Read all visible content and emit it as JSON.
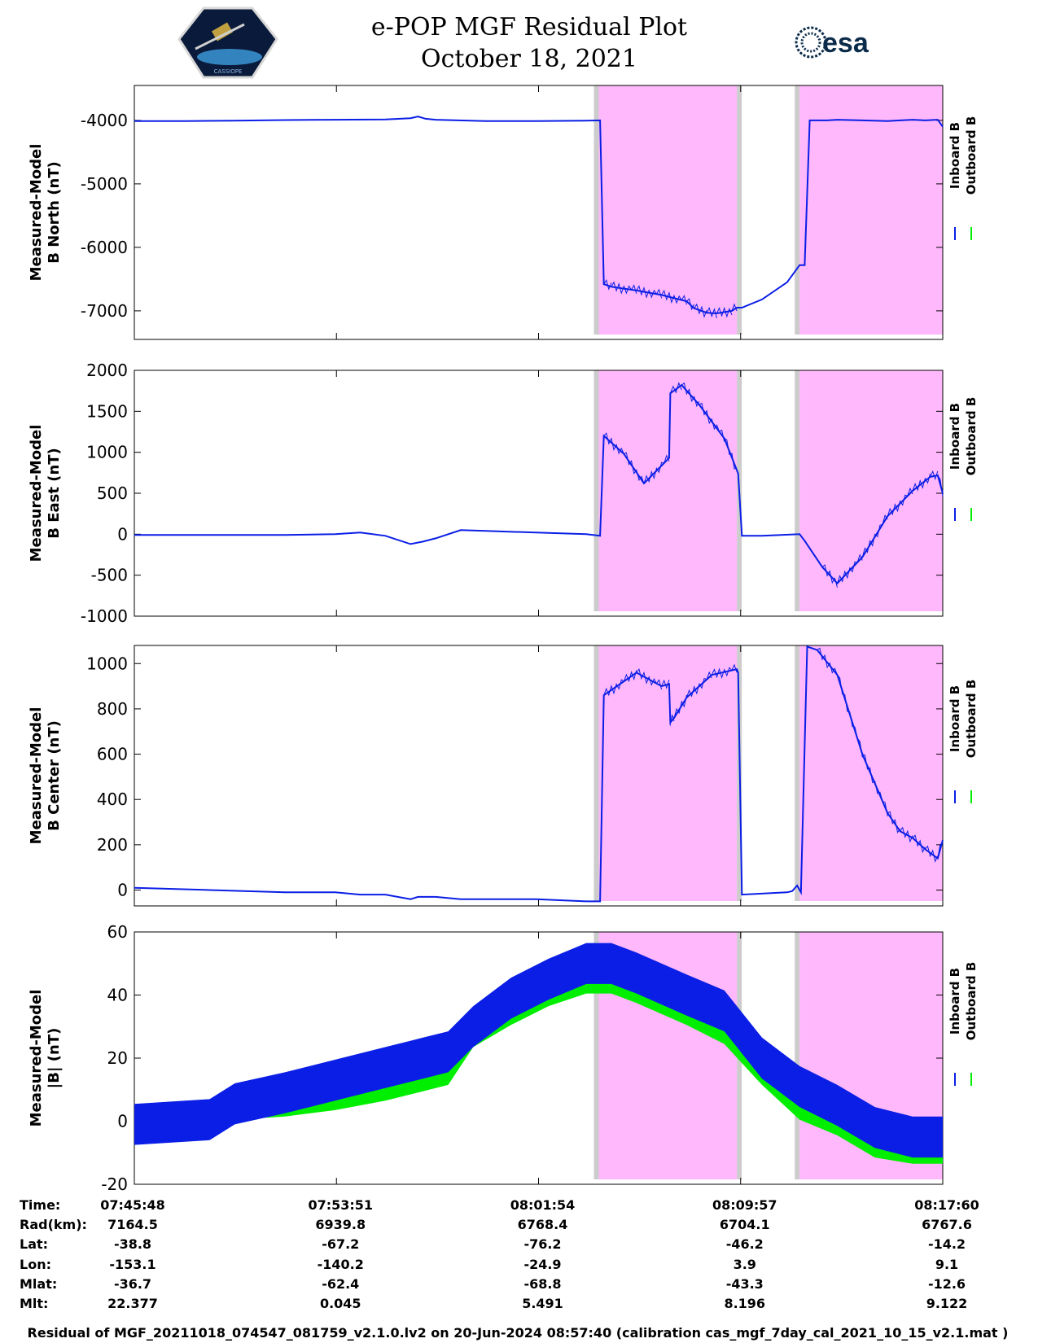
{
  "header": {
    "title_line1": "e-POP MGF Residual Plot",
    "title_line2": "October 18, 2021",
    "logo_left": "CASSIOPE",
    "logo_right": "esa"
  },
  "legend": {
    "inboard": "Inboard B",
    "outboard": "Outboard B"
  },
  "colors": {
    "inboard": "#0a1ee6",
    "outboard": "#00ee00",
    "shade": "#ffb8fb",
    "edge": "#cccccc"
  },
  "footer": "Residual of MGF_20211018_074547_081759_v2.1.0.lv2 on 20-Jun-2024 08:57:40 (calibration cas_mgf_7day_cal_2021_10_15_v2.1.mat )",
  "ephemeris": {
    "row_labels": [
      "Time:",
      "Rad(km):",
      "Lat:",
      "Lon:",
      "Mlat:",
      "Mlt:"
    ],
    "columns": [
      [
        "07:45:48",
        "7164.5",
        "-38.8",
        "-153.1",
        "-36.7",
        "22.377"
      ],
      [
        "07:53:51",
        "6939.8",
        "-67.2",
        "-140.2",
        "-62.4",
        "0.045"
      ],
      [
        "08:01:54",
        "6768.4",
        "-76.2",
        "-24.9",
        "-68.8",
        "5.491"
      ],
      [
        "08:09:57",
        "6704.1",
        "-46.2",
        "3.9",
        "-43.3",
        "8.196"
      ],
      [
        "08:17:60",
        "6767.6",
        "-14.2",
        "9.1",
        "-12.6",
        "9.122"
      ]
    ]
  },
  "chart_data": [
    {
      "type": "line",
      "ylabel": [
        "Measured-Model",
        "B North (nT)"
      ],
      "yticks": [
        -4000,
        -5000,
        -6000,
        -7000
      ],
      "ylim": [
        -7450,
        -3450
      ],
      "x_range_min": [
        0,
        32.2
      ],
      "shaded_min": [
        [
          18.5,
          24.0
        ],
        [
          26.5,
          32.2
        ]
      ],
      "grid": false,
      "series": [
        {
          "name": "Inboard B",
          "x": [
            0,
            2,
            4,
            6,
            8,
            10,
            11,
            11.3,
            11.6,
            12,
            14,
            16,
            18,
            18.55,
            18.7,
            19,
            20,
            21,
            22,
            22.3,
            22.8,
            23.2,
            23.8,
            24.0,
            24.05,
            24.2,
            25,
            26,
            26.5,
            26.7,
            26.9,
            27.2,
            27.6,
            28,
            29,
            30,
            30.5,
            31,
            31.5,
            32,
            32.2
          ],
          "y": [
            -4010,
            -4010,
            -4005,
            -3995,
            -3990,
            -3985,
            -3965,
            -3940,
            -3975,
            -3990,
            -4010,
            -4010,
            -4005,
            -4000,
            -6580,
            -6620,
            -6680,
            -6750,
            -6850,
            -6960,
            -7030,
            -7040,
            -7000,
            -6950,
            -6950,
            -6950,
            -6820,
            -6550,
            -6280,
            -6280,
            -4000,
            -4000,
            -4000,
            -3990,
            -4000,
            -4010,
            -4000,
            -3990,
            -4000,
            -3990,
            -4100
          ],
          "note_unused": ""
        }
      ]
    },
    {
      "type": "line",
      "ylabel": [
        "Measured-Model",
        "B East (nT)"
      ],
      "yticks": [
        2000,
        1500,
        1000,
        500,
        0,
        -500,
        -1000
      ],
      "ylim": [
        -1000,
        2000
      ],
      "shaded_min": [
        [
          18.5,
          24.0
        ],
        [
          26.5,
          32.2
        ]
      ],
      "grid": false,
      "series": [
        {
          "name": "Inboard B",
          "x": [
            0,
            3,
            6,
            8,
            9,
            10,
            11,
            11.5,
            12,
            13,
            14,
            16,
            18,
            18.55,
            18.7,
            19.5,
            20.3,
            21.3,
            21.35,
            21.8,
            22.5,
            23.5,
            24.0,
            24.05,
            24.2,
            25,
            26.5,
            26.7,
            27.4,
            28,
            29,
            30,
            31,
            31.7,
            32.0,
            32.2
          ],
          "y": [
            -10,
            -10,
            -10,
            0,
            20,
            -20,
            -120,
            -90,
            -50,
            50,
            40,
            20,
            0,
            -20,
            1200,
            980,
            620,
            930,
            1720,
            1820,
            1580,
            1170,
            780,
            740,
            -20,
            -20,
            0,
            -80,
            -400,
            -600,
            -280,
            220,
            530,
            700,
            720,
            500
          ]
        }
      ]
    },
    {
      "type": "line",
      "ylabel": [
        "Measured-Model",
        "B Center (nT)"
      ],
      "yticks": [
        1000,
        800,
        600,
        400,
        200,
        0
      ],
      "ylim": [
        -70,
        1080
      ],
      "shaded_min": [
        [
          18.5,
          24.0
        ],
        [
          26.5,
          32.2
        ]
      ],
      "grid": false,
      "series": [
        {
          "name": "Inboard B",
          "x": [
            0,
            3,
            6,
            8,
            9,
            10,
            11,
            11.3,
            11.5,
            12,
            13,
            16,
            18,
            18.55,
            18.7,
            20,
            21,
            21.3,
            21.35,
            21.5,
            22,
            23,
            24.0,
            24.05,
            24.2,
            26,
            26.2,
            26.4,
            26.55,
            26.8,
            27.2,
            28,
            29,
            30,
            30.5,
            31,
            31.5,
            32.0,
            32.2
          ],
          "y": [
            10,
            0,
            -10,
            -10,
            -20,
            -20,
            -40,
            -30,
            -30,
            -30,
            -40,
            -40,
            -50,
            -50,
            860,
            960,
            900,
            910,
            740,
            760,
            850,
            950,
            975,
            960,
            -20,
            -10,
            -5,
            20,
            -10,
            1075,
            1060,
            950,
            600,
            340,
            260,
            230,
            180,
            140,
            220
          ]
        }
      ]
    },
    {
      "type": "line",
      "ylabel": [
        "Measured-Model",
        "|B| (nT)"
      ],
      "yticks": [
        60,
        40,
        20,
        0,
        -20
      ],
      "ylim": [
        -20,
        60
      ],
      "shaded_min": [
        [
          18.5,
          24.0
        ],
        [
          26.5,
          32.2
        ]
      ],
      "grid": false,
      "band_note": "",
      "series": [
        {
          "name": "Inboard B",
          "x": [
            0,
            3,
            4,
            6,
            8,
            10,
            11.5,
            12.5,
            13.5,
            15,
            16.5,
            18,
            19,
            20,
            22,
            23.5,
            25,
            26.5,
            28,
            29.5,
            31,
            32.2
          ],
          "y_center": [
            -1,
            0.5,
            5.5,
            9,
            13,
            17,
            20,
            22,
            30,
            39,
            45,
            50,
            50,
            47,
            40,
            35,
            20,
            11,
            5,
            -2,
            -5,
            -5
          ],
          "half_width": 6.5
        },
        {
          "name": "Outboard B",
          "x": [
            0,
            3,
            4,
            6,
            8,
            10,
            11.5,
            12.5,
            13.5,
            15,
            16.5,
            18,
            19,
            20,
            22,
            23.5,
            25,
            26.5,
            28,
            29.5,
            31,
            32.2
          ],
          "y_center": [
            1,
            2,
            4,
            5,
            7,
            10,
            13,
            15,
            27,
            34,
            40,
            44,
            44,
            41,
            34,
            28,
            15,
            4,
            -1,
            -8,
            -10,
            -10
          ],
          "half_width": 3.5
        }
      ]
    }
  ]
}
